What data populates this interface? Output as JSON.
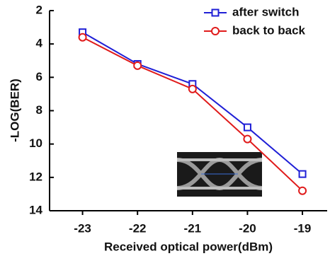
{
  "chart_data": {
    "type": "line",
    "x_label": "Received optical power(dBm)",
    "y_label": "-LOG(BER)",
    "x": [
      -23,
      -22,
      -21,
      -20,
      -19
    ],
    "series": [
      {
        "name": "after switch",
        "color": "#1f1fd6",
        "marker": "square",
        "values": [
          3.3,
          5.2,
          6.4,
          9.0,
          11.8
        ]
      },
      {
        "name": "back to back",
        "color": "#e01b1b",
        "marker": "circle",
        "values": [
          3.6,
          5.3,
          6.7,
          9.7,
          12.8
        ]
      }
    ],
    "xlim": [
      -23.6,
      -18.55
    ],
    "xticks": [
      -23,
      -22,
      -21,
      -20,
      -19
    ],
    "ylim": [
      2,
      14
    ],
    "yticks": [
      2,
      4,
      6,
      8,
      10,
      12,
      14
    ],
    "y_inverted": true,
    "legend": "upper right"
  }
}
